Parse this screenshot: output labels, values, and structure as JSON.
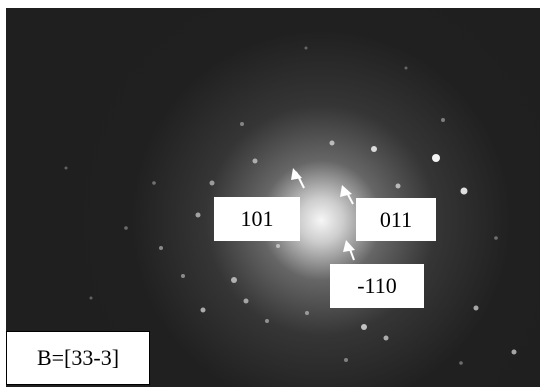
{
  "labels": {
    "reflection_101": "101",
    "reflection_011": "011",
    "reflection_m110": "-110",
    "zone_axis": "B=[33-3]"
  },
  "colors": {
    "background": "#1f1f1f",
    "spots": "#ffffff",
    "label_box": "#ffffff",
    "label_text": "#000000"
  },
  "icons": {
    "pointer": "arrow-pointer-icon"
  }
}
